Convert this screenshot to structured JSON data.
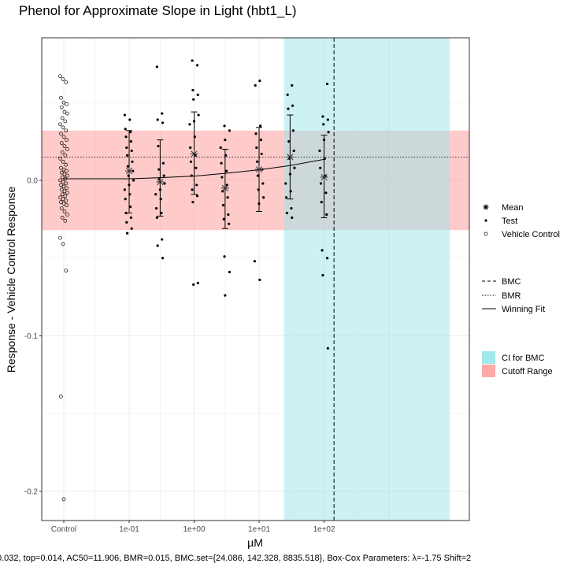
{
  "chart_data": {
    "type": "scatter",
    "title": "Phenol for Approximate Slope in Light (hbt1_L)",
    "xlabel": "µM",
    "ylabel": "Response - Vehicle Control Response",
    "footer": "0.032, top=0.014, AC50=11.906, BMR=0.015, BMC.set={24.086, 142.328, 8835.518}, Box-Cox Parameters: λ=-1.75 Shift=2",
    "x_scale": "log10",
    "x_ticks": [
      {
        "label": "Control",
        "x": null
      },
      {
        "label": "1e-01",
        "x": 0.1
      },
      {
        "label": "1e+00",
        "x": 1
      },
      {
        "label": "1e+01",
        "x": 10
      },
      {
        "label": "1e+02",
        "x": 100
      }
    ],
    "y_ticks": [
      {
        "label": "0.0",
        "y": 0.0
      },
      {
        "label": "-0.1",
        "y": -0.1
      },
      {
        "label": "-0.2",
        "y": -0.2
      }
    ],
    "ylim": [
      -0.22,
      0.09
    ],
    "grid": true,
    "legend_position": "right",
    "legend": {
      "points": [
        "Mean",
        "Test",
        "Vehicle Control"
      ],
      "lines": [
        "BMC",
        "BMR",
        "Winning Fit"
      ],
      "fills": [
        "CI for BMC",
        "Cutoff Range"
      ]
    },
    "colors": {
      "ci_fill": "#99e6e8",
      "cutoff_fill": "#ff9e9e",
      "panel_border": "#333333",
      "grid": "#ebebeb"
    },
    "bmr": 0.015,
    "bmc": 142.328,
    "ci_bmc": [
      24.086,
      8835.518
    ],
    "cutoff_range": [
      -0.032,
      0.032
    ],
    "winning_fit": {
      "x": [
        0.1,
        0.3,
        1,
        3,
        10,
        30,
        100
      ],
      "y": [
        0.001,
        0.0017,
        0.0027,
        0.0045,
        0.0068,
        0.0095,
        0.0135
      ]
    },
    "means": [
      {
        "x": 0.1,
        "y": 0.006,
        "err_low": -0.021,
        "err_high": 0.032
      },
      {
        "x": 0.3,
        "y": -0.001,
        "err_low": -0.023,
        "err_high": 0.026
      },
      {
        "x": 1.0,
        "y": 0.017,
        "err_low": -0.009,
        "err_high": 0.044
      },
      {
        "x": 3.0,
        "y": -0.005,
        "err_low": -0.031,
        "err_high": 0.02
      },
      {
        "x": 10.0,
        "y": 0.007,
        "err_low": -0.02,
        "err_high": 0.034
      },
      {
        "x": 30.0,
        "y": 0.015,
        "err_low": -0.012,
        "err_high": 0.042
      },
      {
        "x": 100.0,
        "y": 0.002,
        "err_low": -0.024,
        "err_high": 0.029
      }
    ],
    "test_points": [
      {
        "x": 0.1,
        "y": [
          0.042,
          0.039,
          0.033,
          0.031,
          0.028,
          0.025,
          0.021,
          0.019,
          0.016,
          0.012,
          0.009,
          0.006,
          0.003,
          0.0,
          -0.003,
          -0.006,
          -0.009,
          -0.012,
          -0.017,
          -0.021,
          -0.024,
          -0.027,
          -0.031,
          -0.034
        ]
      },
      {
        "x": 0.3,
        "y": [
          0.073,
          0.043,
          0.039,
          0.037,
          0.022,
          0.011,
          0.007,
          0.003,
          0.001,
          -0.002,
          -0.006,
          -0.009,
          -0.012,
          -0.018,
          -0.021,
          -0.024,
          -0.038,
          -0.042,
          -0.05
        ]
      },
      {
        "x": 1.0,
        "y": [
          0.077,
          0.074,
          0.058,
          0.055,
          0.052,
          0.042,
          0.038,
          0.036,
          0.028,
          0.021,
          0.016,
          0.012,
          0.008,
          0.003,
          -0.003,
          -0.006,
          -0.01,
          -0.014,
          -0.066,
          -0.067
        ]
      },
      {
        "x": 3.0,
        "y": [
          0.035,
          0.032,
          0.026,
          0.021,
          0.016,
          0.011,
          0.006,
          0.002,
          -0.003,
          -0.007,
          -0.011,
          -0.016,
          -0.022,
          -0.025,
          -0.028,
          -0.049,
          -0.059,
          -0.074
        ]
      },
      {
        "x": 10.0,
        "y": [
          0.064,
          0.061,
          0.035,
          0.03,
          0.026,
          0.021,
          0.017,
          0.012,
          0.007,
          0.003,
          -0.002,
          -0.006,
          -0.011,
          -0.015,
          -0.052,
          -0.064
        ]
      },
      {
        "x": 30.0,
        "y": [
          0.061,
          0.055,
          0.048,
          0.046,
          0.032,
          0.025,
          0.019,
          0.014,
          0.008,
          0.004,
          -0.002,
          -0.007,
          -0.011,
          -0.018,
          -0.021,
          -0.024
        ]
      },
      {
        "x": 100.0,
        "y": [
          0.062,
          0.041,
          0.039,
          0.036,
          0.031,
          0.026,
          0.019,
          0.014,
          0.008,
          0.003,
          -0.002,
          -0.008,
          -0.014,
          -0.022,
          -0.045,
          -0.05,
          -0.061,
          -0.108
        ]
      }
    ],
    "vehicle_control": [
      0.067,
      0.065,
      0.063,
      0.053,
      0.05,
      0.049,
      0.047,
      0.044,
      0.043,
      0.04,
      0.038,
      0.036,
      0.034,
      0.032,
      0.03,
      0.028,
      0.026,
      0.024,
      0.022,
      0.02,
      0.018,
      0.016,
      0.014,
      0.012,
      0.01,
      0.008,
      0.007,
      0.006,
      0.005,
      0.004,
      0.003,
      0.002,
      0.001,
      0.0,
      -0.001,
      -0.002,
      -0.003,
      -0.004,
      -0.005,
      -0.006,
      -0.007,
      -0.008,
      -0.009,
      -0.01,
      -0.011,
      -0.012,
      -0.013,
      -0.014,
      -0.015,
      -0.016,
      -0.018,
      -0.02,
      -0.022,
      -0.024,
      -0.026,
      -0.037,
      -0.041,
      -0.058,
      -0.139,
      -0.205
    ]
  }
}
